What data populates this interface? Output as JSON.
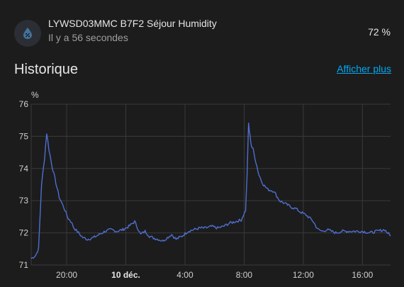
{
  "entity": {
    "name": "LYWSD03MMC B7F2 Séjour Humidity",
    "last_changed": "Il y a 56 secondes",
    "state": "72 %",
    "icon": "water-percent-icon",
    "icon_color": "#44739e"
  },
  "history": {
    "title": "Historique",
    "more_link": "Afficher plus"
  },
  "chart_data": {
    "type": "line",
    "ylabel": "%",
    "ylim": [
      71,
      76
    ],
    "y_ticks": [
      "71",
      "72",
      "73",
      "74",
      "75",
      "76"
    ],
    "x_ticks": [
      {
        "label": "20:00",
        "h": 20,
        "bold": false
      },
      {
        "label": "10 déc.",
        "h": 24,
        "bold": true
      },
      {
        "label": "4:00",
        "h": 28,
        "bold": false
      },
      {
        "label": "8:00",
        "h": 32,
        "bold": false
      },
      {
        "label": "12:00",
        "h": 36,
        "bold": false
      },
      {
        "label": "16:00",
        "h": 40,
        "bold": false
      }
    ],
    "xlim_hours": [
      17.6,
      41.9
    ],
    "grid": true,
    "color": "#4f6fd1",
    "series": [
      {
        "name": "",
        "x": [
          17.6,
          17.9,
          18.1,
          18.3,
          18.5,
          18.65,
          18.8,
          19.0,
          19.2,
          19.5,
          19.8,
          20.1,
          20.3,
          20.5,
          20.8,
          21.1,
          21.4,
          21.8,
          22.2,
          22.6,
          23.0,
          23.4,
          23.8,
          24.2,
          24.6,
          25.0,
          25.3,
          25.6,
          25.8,
          26.2,
          26.5,
          26.8,
          27.1,
          27.4,
          27.8,
          28.2,
          28.6,
          29.0,
          29.4,
          29.8,
          30.2,
          30.6,
          31.0,
          31.4,
          31.8,
          32.1,
          32.2,
          32.3,
          32.4,
          32.5,
          32.6,
          32.8,
          33.0,
          33.3,
          33.6,
          34.0,
          34.4,
          34.8,
          35.2,
          35.5,
          35.8,
          36.2,
          36.6,
          37.0,
          37.3,
          37.6,
          37.9,
          38.2,
          38.6,
          39.0,
          39.5,
          40.0,
          40.5,
          41.0,
          41.5,
          41.9
        ],
        "y": [
          71.2,
          71.3,
          71.5,
          73.5,
          74.3,
          75.1,
          74.6,
          74.1,
          73.7,
          73.1,
          72.8,
          72.45,
          72.35,
          72.15,
          72.0,
          71.85,
          71.8,
          71.85,
          71.95,
          72.05,
          72.1,
          72.05,
          72.1,
          72.2,
          72.35,
          71.95,
          72.05,
          71.9,
          71.85,
          71.8,
          71.75,
          71.85,
          71.95,
          71.8,
          71.9,
          72.05,
          72.1,
          72.15,
          72.15,
          72.2,
          72.15,
          72.2,
          72.3,
          72.35,
          72.4,
          72.7,
          73.8,
          75.4,
          75.0,
          74.7,
          74.6,
          74.2,
          73.8,
          73.5,
          73.35,
          73.3,
          73.0,
          72.9,
          72.8,
          72.75,
          72.65,
          72.55,
          72.4,
          72.1,
          72.05,
          72.1,
          72.05,
          72.0,
          72.05,
          72.05,
          72.05,
          72.05,
          72.0,
          72.05,
          72.1,
          71.9
        ]
      }
    ]
  }
}
